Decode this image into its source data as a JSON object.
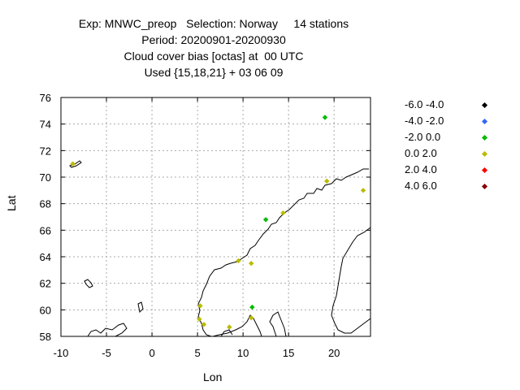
{
  "title": {
    "line1": "Exp: MNWC_preop   Selection: Norway     14 stations",
    "line2": "Period: 20200901-20200930",
    "line3": "Cloud cover bias [octas] at  00 UTC",
    "line4": "Used {15,18,21} + 03 06 09"
  },
  "chart_data": {
    "type": "scatter",
    "xlabel": "Lon",
    "ylabel": "Lat",
    "xlim": [
      -10,
      24
    ],
    "ylim": [
      58,
      76
    ],
    "xticks": [
      "-10",
      "-5",
      "0",
      "5",
      "10",
      "15",
      "20"
    ],
    "yticks": [
      "58",
      "60",
      "62",
      "64",
      "66",
      "68",
      "70",
      "72",
      "74",
      "76"
    ],
    "grid": true,
    "legend_position": "right",
    "legend": [
      {
        "label": "-6.0 -4.0",
        "color": "#000000"
      },
      {
        "label": "-4.0 -2.0",
        "color": "#3366ff"
      },
      {
        "label": "-2.0 0.0",
        "color": "#00bb00"
      },
      {
        "label": "0.0 2.0",
        "color": "#bbbb00"
      },
      {
        "label": "2.0 4.0",
        "color": "#ff0000"
      },
      {
        "label": "4.0 6.0",
        "color": "#880000"
      }
    ],
    "points": [
      {
        "lon": -8.7,
        "lat": 71.0,
        "cls": 3
      },
      {
        "lon": 19.0,
        "lat": 74.5,
        "cls": 2
      },
      {
        "lon": 23.2,
        "lat": 69.0,
        "cls": 3
      },
      {
        "lon": 19.2,
        "lat": 69.7,
        "cls": 3
      },
      {
        "lon": 14.4,
        "lat": 67.3,
        "cls": 3
      },
      {
        "lon": 12.5,
        "lat": 66.8,
        "cls": 2
      },
      {
        "lon": 9.5,
        "lat": 63.7,
        "cls": 3
      },
      {
        "lon": 10.9,
        "lat": 63.5,
        "cls": 3
      },
      {
        "lon": 11.0,
        "lat": 60.2,
        "cls": 2
      },
      {
        "lon": 10.9,
        "lat": 59.4,
        "cls": 3
      },
      {
        "lon": 8.5,
        "lat": 58.7,
        "cls": 3
      },
      {
        "lon": 5.7,
        "lat": 58.9,
        "cls": 3
      },
      {
        "lon": 5.2,
        "lat": 59.3,
        "cls": 3
      },
      {
        "lon": 5.3,
        "lat": 60.3,
        "cls": 3
      }
    ]
  }
}
